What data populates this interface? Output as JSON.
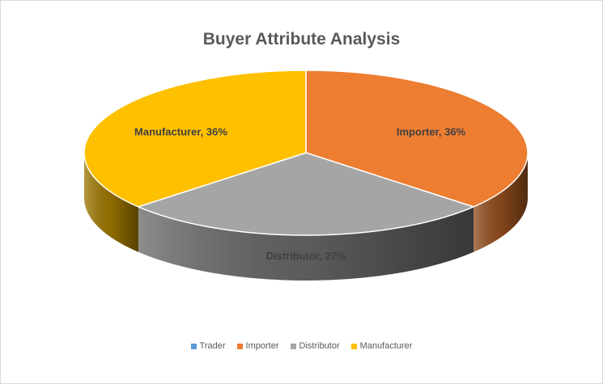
{
  "chart_data": {
    "type": "pie",
    "title": "Buyer Attribute Analysis",
    "three_d": true,
    "legend_position": "bottom",
    "slices": [
      {
        "name": "Trader",
        "value": 0,
        "color": "#5b9bd5"
      },
      {
        "name": "Importer",
        "value": 36,
        "color": "#ed7d31"
      },
      {
        "name": "Distributor",
        "value": 27,
        "color": "#a5a5a5"
      },
      {
        "name": "Manufacturer",
        "value": 36,
        "color": "#ffc000"
      }
    ],
    "data_labels": [
      {
        "series": "Importer",
        "text": "Importer, 36%"
      },
      {
        "series": "Distributor",
        "text": "Distributor, 27%"
      },
      {
        "series": "Manufacturer",
        "text": "Manufacturer, 36%"
      }
    ]
  }
}
